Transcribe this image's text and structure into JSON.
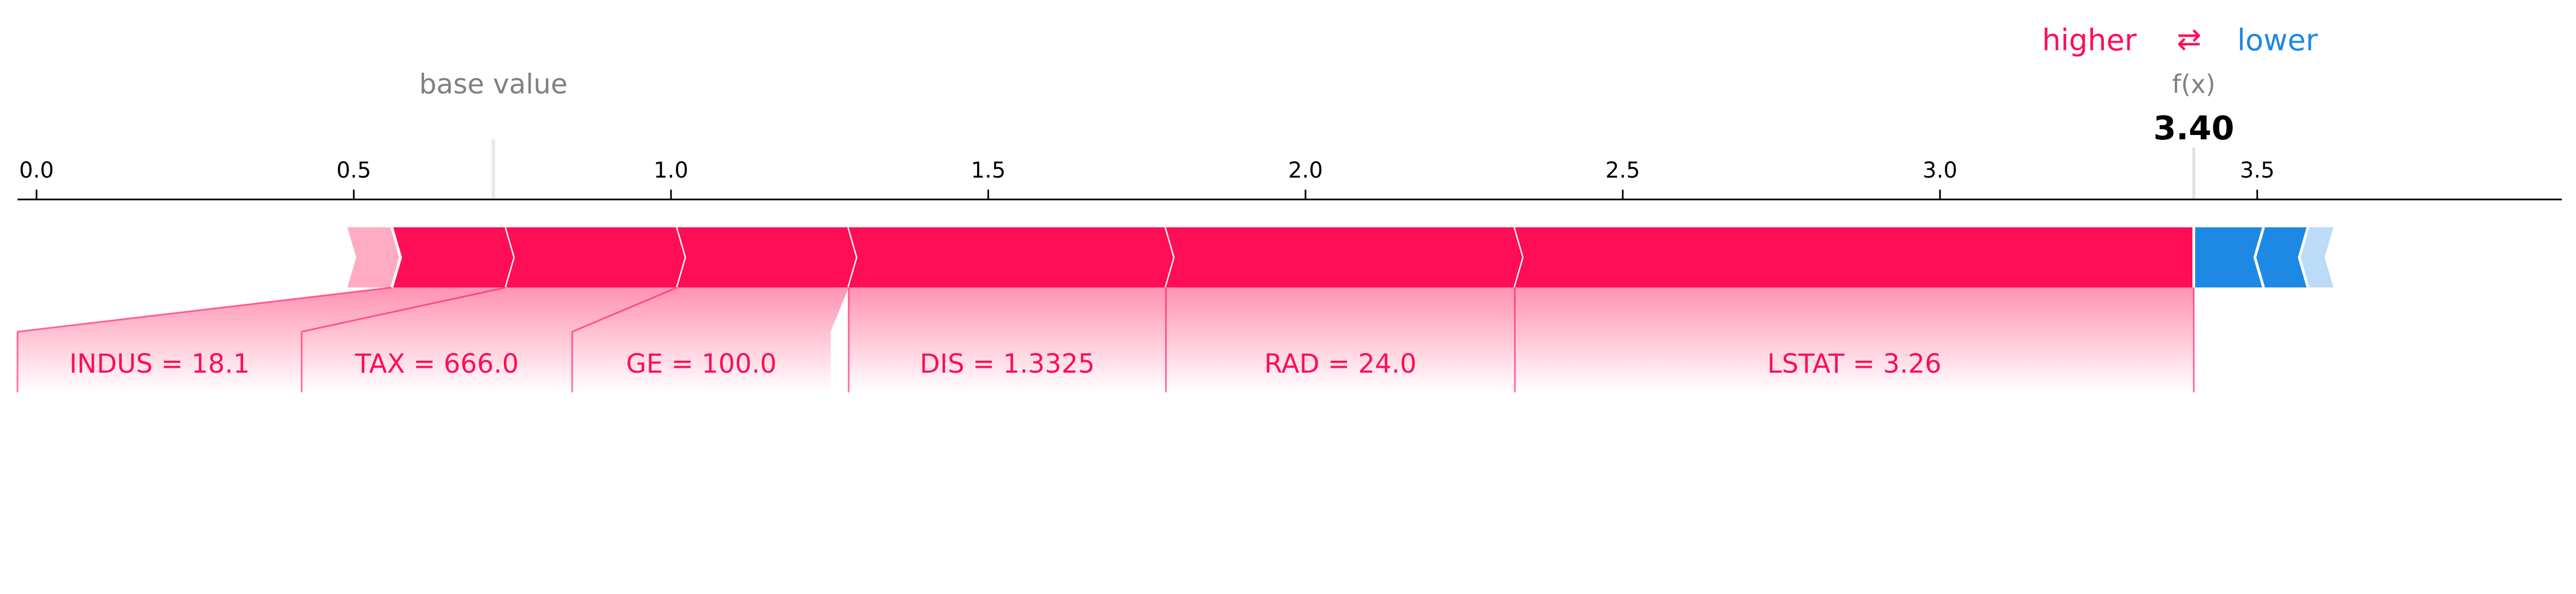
{
  "chart_data": {
    "type": "force",
    "legend": {
      "higher": "higher",
      "arrow": "⇄",
      "lower": "lower"
    },
    "base_value_label": "base value",
    "base_value": 0.72,
    "fx_label": "f(x)",
    "fx_value": 3.4,
    "fx_value_text": "3.40",
    "xlim": [
      -0.03,
      3.98
    ],
    "ticks": [
      {
        "value": 0.0,
        "label": "0.0"
      },
      {
        "value": 0.5,
        "label": "0.5"
      },
      {
        "value": 1.0,
        "label": "1.0"
      },
      {
        "value": 1.5,
        "label": "1.5"
      },
      {
        "value": 2.0,
        "label": "2.0"
      },
      {
        "value": 2.5,
        "label": "2.5"
      },
      {
        "value": 3.0,
        "label": "3.0"
      },
      {
        "value": 3.5,
        "label": "3.5"
      }
    ],
    "positive_features": [
      {
        "label": "",
        "start": 0.49,
        "end": 0.56
      },
      {
        "label": "INDUS = 18.1",
        "start": 0.56,
        "end": 0.74
      },
      {
        "label": "TAX = 666.0",
        "start": 0.74,
        "end": 1.01
      },
      {
        "label": "GE = 100.0",
        "start": 1.01,
        "end": 1.28
      },
      {
        "label": "DIS = 1.3325",
        "start": 1.28,
        "end": 1.78
      },
      {
        "label": "RAD = 24.0",
        "start": 1.78,
        "end": 2.33
      },
      {
        "label": "LSTAT = 3.26",
        "start": 2.33,
        "end": 3.4
      }
    ],
    "negative_features": [
      {
        "label": "",
        "start": 3.4,
        "end": 3.51
      },
      {
        "label": "",
        "start": 3.51,
        "end": 3.58
      },
      {
        "label": "",
        "start": 3.58,
        "end": 3.62
      }
    ],
    "colors": {
      "positive": "#ff0d57",
      "negative": "#1e88e5",
      "base": "#e0e0e0"
    }
  }
}
